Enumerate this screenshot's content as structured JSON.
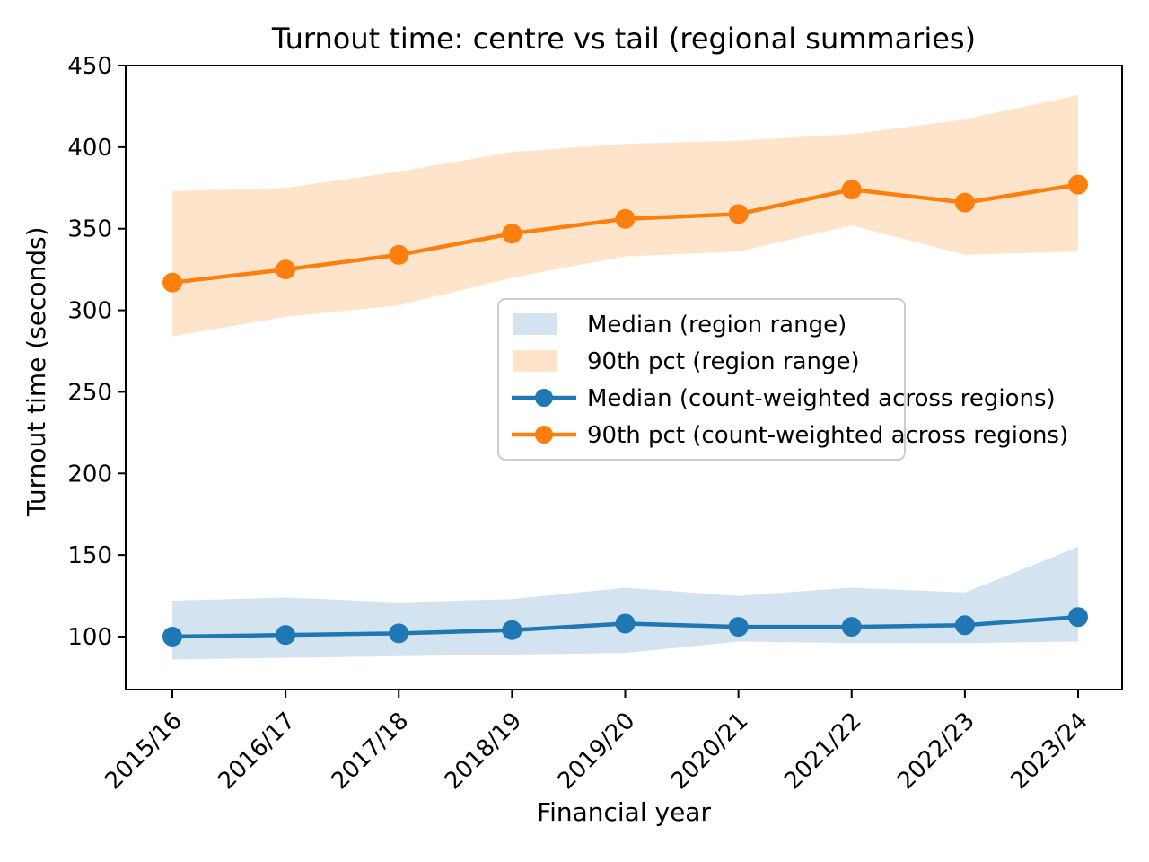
{
  "chart_data": {
    "type": "line",
    "title": "Turnout time: centre vs tail (regional summaries)",
    "xlabel": "Financial year",
    "ylabel": "Turnout time (seconds)",
    "categories": [
      "2015/16",
      "2016/17",
      "2017/18",
      "2018/19",
      "2019/20",
      "2020/21",
      "2021/22",
      "2022/23",
      "2023/24"
    ],
    "series": [
      {
        "name": "Median (count-weighted across regions)",
        "color": "#1f77b4",
        "values": [
          100,
          101,
          102,
          104,
          108,
          106,
          106,
          107,
          112
        ]
      },
      {
        "name": "90th pct (count-weighted across regions)",
        "color": "#ff7f0e",
        "values": [
          317,
          325,
          334,
          347,
          356,
          359,
          374,
          366,
          377
        ]
      }
    ],
    "bands": [
      {
        "name": "Median (region range)",
        "color": "#d3e4f0",
        "low": [
          86,
          87,
          88,
          89,
          90,
          97,
          96,
          96,
          97
        ],
        "high": [
          122,
          124,
          121,
          123,
          130,
          125,
          130,
          127,
          155
        ]
      },
      {
        "name": "90th pct (region range)",
        "color": "#ffe4cc",
        "low": [
          284,
          296,
          303,
          320,
          333,
          336,
          352,
          334,
          336
        ],
        "high": [
          373,
          375,
          385,
          397,
          402,
          404,
          408,
          417,
          432
        ]
      }
    ],
    "yticks": [
      100,
      150,
      200,
      250,
      300,
      350,
      400,
      450
    ],
    "ylim": [
      67,
      450
    ],
    "grid": false,
    "legend_position": "inside middle-right",
    "legend_order": [
      "Median (region range)",
      "90th pct (region range)",
      "Median (count-weighted across regions)",
      "90th pct (count-weighted across regions)"
    ]
  },
  "colors": {
    "axis": "#000000",
    "legend_border": "#cccccc",
    "legend_background": "#ffffff",
    "background": "#ffffff"
  }
}
